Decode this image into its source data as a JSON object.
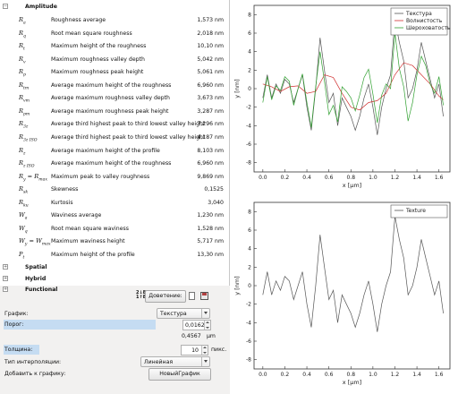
{
  "tree": {
    "amplitude_label": "Amplitude",
    "rows": [
      {
        "sym": "R",
        "sub": "a",
        "sym2": "",
        "sub2": "",
        "name": "Roughness average",
        "value": "1,573 nm"
      },
      {
        "sym": "R",
        "sub": "q",
        "sym2": "",
        "sub2": "",
        "name": "Root mean square roughness",
        "value": "2,018 nm"
      },
      {
        "sym": "R",
        "sub": "t",
        "sym2": "",
        "sub2": "",
        "name": "Maximum height of the roughness",
        "value": "10,10 nm"
      },
      {
        "sym": "R",
        "sub": "v",
        "sym2": "",
        "sub2": "",
        "name": "Maximum roughness valley depth",
        "value": "5,042 nm"
      },
      {
        "sym": "R",
        "sub": "p",
        "sym2": "",
        "sub2": "",
        "name": "Maximum roughness peak height",
        "value": "5,061 nm"
      },
      {
        "sym": "R",
        "sub": "tm",
        "sym2": "",
        "sub2": "",
        "name": "Average maximum height of the roughness",
        "value": "6,960 nm"
      },
      {
        "sym": "R",
        "sub": "vm",
        "sym2": "",
        "sub2": "",
        "name": "Average maximum roughness valley depth",
        "value": "3,673 nm"
      },
      {
        "sym": "R",
        "sub": "pm",
        "sym2": "",
        "sub2": "",
        "name": "Average maximum roughness peak height",
        "value": "3,287 nm"
      },
      {
        "sym": "R",
        "sub": "3z",
        "sym2": "",
        "sub2": "",
        "name": "Average third highest peak to third lowest valley height",
        "value": "7,296 nm"
      },
      {
        "sym": "R",
        "sub": "3z ISO",
        "sym2": "",
        "sub2": "",
        "name": "Average third highest peak to third lowest valley height",
        "value": "4,187 nm"
      },
      {
        "sym": "R",
        "sub": "z",
        "sym2": "",
        "sub2": "",
        "name": "Average maximum height of the profile",
        "value": "8,103 nm"
      },
      {
        "sym": "R",
        "sub": "z ISO",
        "sym2": "",
        "sub2": "",
        "name": "Average maximum height of the roughness",
        "value": "6,960 nm"
      },
      {
        "sym": "R",
        "sub": "y",
        "sym2": " = R",
        "sub2": "max",
        "name": "Maximum peak to valley roughness",
        "value": "9,869 nm"
      },
      {
        "sym": "R",
        "sub": "sk",
        "sym2": "",
        "sub2": "",
        "name": "Skewness",
        "value": "0,1525"
      },
      {
        "sym": "R",
        "sub": "ku",
        "sym2": "",
        "sub2": "",
        "name": "Kurtosis",
        "value": "3,040"
      },
      {
        "sym": "W",
        "sub": "a",
        "sym2": "",
        "sub2": "",
        "name": "Waviness average",
        "value": "1,230 nm"
      },
      {
        "sym": "W",
        "sub": "q",
        "sym2": "",
        "sub2": "",
        "name": "Root mean square waviness",
        "value": "1,528 nm"
      },
      {
        "sym": "W",
        "sub": "y",
        "sym2": " = W",
        "sub2": "max",
        "name": "Maximum waviness height",
        "value": "5,717 nm"
      },
      {
        "sym": "P",
        "sub": "t",
        "sym2": "",
        "sub2": "",
        "name": "Maximum height of the profile",
        "value": "13,30 nm"
      }
    ],
    "groups": [
      "Spatial",
      "Hybrid",
      "Functional"
    ]
  },
  "controls": {
    "details_button": "Доветение:",
    "graph_label": "График:",
    "graph_value": "Текстура",
    "threshold_label": "Порог:",
    "threshold_value": "0,0162",
    "threshold_unit": "",
    "threshold_secondary": "0,4567",
    "threshold_secondary_unit": "μm",
    "thickness_label": "Толщина:",
    "thickness_value": "10",
    "thickness_unit": "пикс.",
    "interp_label": "Тип интерполяции:",
    "interp_value": "Линейная",
    "add_label": "Добавить к графику:",
    "new_graph_button": "НовыйГрафик"
  },
  "colors": {
    "texture": "#555555",
    "waviness": "#d03030",
    "roughness": "#30a030",
    "highlight": "#c5dcf2"
  },
  "chart_data": [
    {
      "type": "line",
      "title": "",
      "xlabel": "x [μm]",
      "ylabel": "y [nm]",
      "xlim": [
        -0.08,
        1.7
      ],
      "ylim": [
        -9,
        9
      ],
      "xticks": [
        "0.0",
        "0.2",
        "0.4",
        "0.6",
        "0.8",
        "1.0",
        "1.2",
        "1.4",
        "1.6"
      ],
      "yticks": [
        "-8",
        "-6",
        "-4",
        "-2",
        "0",
        "2",
        "4",
        "6",
        "8"
      ],
      "legend": "top-right",
      "series": [
        {
          "name": "Текстура",
          "color_key": "texture",
          "x": [
            0,
            0.04,
            0.08,
            0.12,
            0.16,
            0.2,
            0.24,
            0.28,
            0.32,
            0.36,
            0.4,
            0.44,
            0.48,
            0.52,
            0.56,
            0.6,
            0.64,
            0.68,
            0.72,
            0.76,
            0.8,
            0.84,
            0.88,
            0.92,
            0.96,
            1.0,
            1.04,
            1.08,
            1.12,
            1.16,
            1.2,
            1.24,
            1.28,
            1.32,
            1.36,
            1.4,
            1.44,
            1.48,
            1.52,
            1.56,
            1.6,
            1.64
          ],
          "y": [
            -1,
            1.5,
            -1,
            0.5,
            -0.5,
            1,
            0.5,
            -1.5,
            0,
            1.5,
            -2,
            -4.5,
            0,
            5.5,
            2,
            -1.5,
            -0.5,
            -4,
            -1,
            -2,
            -3,
            -4.5,
            -3,
            -1,
            0.5,
            -2,
            -5,
            -2,
            0,
            1.5,
            7.5,
            5,
            3,
            -1,
            0,
            2,
            5,
            3,
            1,
            -1,
            0.5,
            -3
          ]
        },
        {
          "name": "Волнистость",
          "color_key": "waviness",
          "x": [
            0,
            0.08,
            0.16,
            0.24,
            0.32,
            0.4,
            0.48,
            0.56,
            0.64,
            0.72,
            0.8,
            0.88,
            0.96,
            1.04,
            1.12,
            1.2,
            1.28,
            1.36,
            1.44,
            1.52,
            1.6,
            1.64
          ],
          "y": [
            0.5,
            0.2,
            -0.3,
            0.2,
            0.3,
            -0.5,
            -0.3,
            1.5,
            1.2,
            -0.5,
            -2,
            -2.3,
            -1.5,
            -1.3,
            -0.5,
            1.5,
            2.8,
            2.5,
            1.5,
            0.5,
            -0.8,
            -1.2
          ]
        },
        {
          "name": "Шероховатость",
          "color_key": "roughness",
          "x": [
            0,
            0.04,
            0.08,
            0.12,
            0.16,
            0.2,
            0.24,
            0.28,
            0.32,
            0.36,
            0.4,
            0.44,
            0.48,
            0.52,
            0.56,
            0.6,
            0.64,
            0.68,
            0.72,
            0.76,
            0.8,
            0.84,
            0.88,
            0.92,
            0.96,
            1.0,
            1.04,
            1.08,
            1.12,
            1.16,
            1.2,
            1.24,
            1.28,
            1.32,
            1.36,
            1.4,
            1.44,
            1.48,
            1.52,
            1.56,
            1.6,
            1.64
          ],
          "y": [
            -1.5,
            1.3,
            -1.2,
            0.3,
            -0.2,
            1.3,
            0.8,
            -1.8,
            0,
            1.6,
            -1.5,
            -4.2,
            0.2,
            4,
            0.8,
            -2.8,
            -1.8,
            -3.6,
            0.2,
            -0.3,
            -1,
            -2.4,
            -0.7,
            1.2,
            2.1,
            -0.6,
            -3.7,
            -0.7,
            0.5,
            0,
            6,
            2.2,
            0.2,
            -3.5,
            -1.5,
            1.5,
            3.5,
            2.5,
            0.5,
            -0.5,
            1.3,
            -1.8
          ]
        }
      ]
    },
    {
      "type": "line",
      "title": "",
      "xlabel": "x [μm]",
      "ylabel": "y [nm]",
      "xlim": [
        -0.08,
        1.7
      ],
      "ylim": [
        -9,
        9
      ],
      "xticks": [
        "0.0",
        "0.2",
        "0.4",
        "0.6",
        "0.8",
        "1.0",
        "1.2",
        "1.4",
        "1.6"
      ],
      "yticks": [
        "-8",
        "-6",
        "-4",
        "-2",
        "0",
        "2",
        "4",
        "6",
        "8"
      ],
      "legend": "top-right",
      "series": [
        {
          "name": "Texture",
          "color_key": "texture",
          "x": [
            0,
            0.04,
            0.08,
            0.12,
            0.16,
            0.2,
            0.24,
            0.28,
            0.32,
            0.36,
            0.4,
            0.44,
            0.48,
            0.52,
            0.56,
            0.6,
            0.64,
            0.68,
            0.72,
            0.76,
            0.8,
            0.84,
            0.88,
            0.92,
            0.96,
            1.0,
            1.04,
            1.08,
            1.12,
            1.16,
            1.2,
            1.24,
            1.28,
            1.32,
            1.36,
            1.4,
            1.44,
            1.48,
            1.52,
            1.56,
            1.6,
            1.64
          ],
          "y": [
            -1,
            1.5,
            -1,
            0.5,
            -0.5,
            1,
            0.5,
            -1.5,
            0,
            1.5,
            -2,
            -4.5,
            0,
            5.5,
            2,
            -1.5,
            -0.5,
            -4,
            -1,
            -2,
            -3,
            -4.5,
            -3,
            -1,
            0.5,
            -2,
            -5,
            -2,
            0,
            1.5,
            7.5,
            5,
            3,
            -1,
            0,
            2,
            5,
            3,
            1,
            -1,
            0.5,
            -3
          ]
        }
      ]
    }
  ]
}
